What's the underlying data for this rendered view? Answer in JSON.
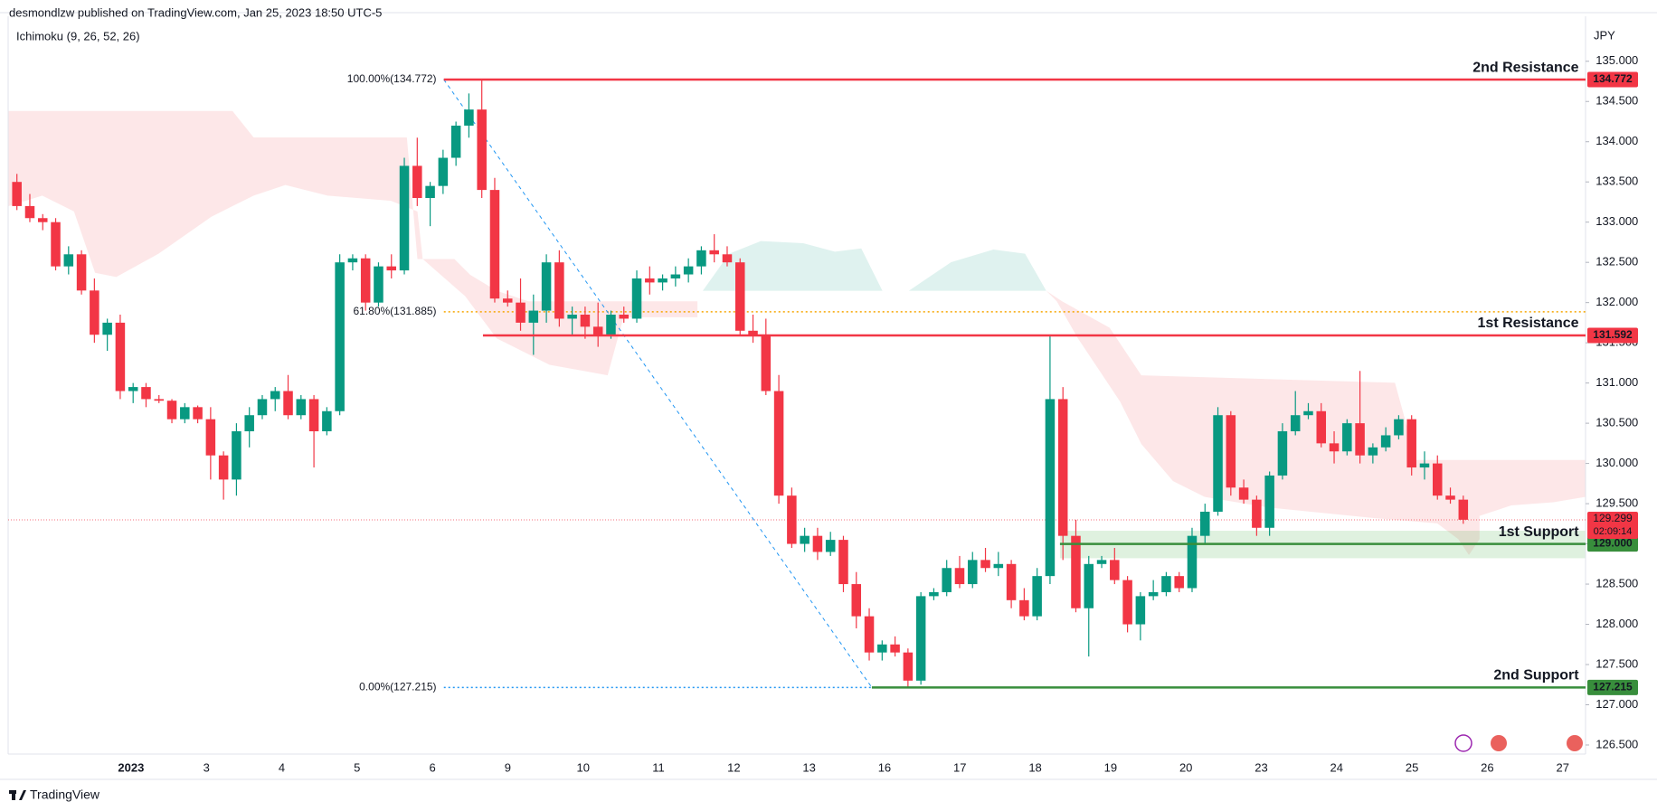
{
  "header": {
    "publisher": "desmondlzw published on TradingView.com, Jan 25, 2023 18:50 UTC-5",
    "indicator": "Ichimoku (9, 26, 52, 26)"
  },
  "footer": {
    "brand": "TradingView"
  },
  "chart_data": {
    "type": "candlestick",
    "currency": "JPY",
    "x_labels": [
      "2023",
      "3",
      "4",
      "5",
      "6",
      "9",
      "10",
      "11",
      "12",
      "13",
      "16",
      "17",
      "18",
      "19",
      "20",
      "23",
      "24",
      "25",
      "26",
      "27"
    ],
    "up_color": "#089981",
    "down_color": "#f23645",
    "candles": [
      [
        133.5,
        133.6,
        133.15,
        133.2
      ],
      [
        133.2,
        133.35,
        133.0,
        133.05
      ],
      [
        133.05,
        133.1,
        132.9,
        133.0
      ],
      [
        133.0,
        133.05,
        132.4,
        132.45
      ],
      [
        132.45,
        132.7,
        132.35,
        132.6
      ],
      [
        132.6,
        132.65,
        132.1,
        132.15
      ],
      [
        132.15,
        132.3,
        131.5,
        131.6
      ],
      [
        131.6,
        131.8,
        131.4,
        131.75
      ],
      [
        131.75,
        131.85,
        130.8,
        130.9
      ],
      [
        130.9,
        131.0,
        130.75,
        130.95
      ],
      [
        130.95,
        131.0,
        130.7,
        130.8
      ],
      [
        130.8,
        130.85,
        130.75,
        130.78
      ],
      [
        130.78,
        130.8,
        130.5,
        130.55
      ],
      [
        130.55,
        130.75,
        130.5,
        130.7
      ],
      [
        130.7,
        130.72,
        130.5,
        130.55
      ],
      [
        130.55,
        130.7,
        129.8,
        130.1
      ],
      [
        130.1,
        130.15,
        129.55,
        129.8
      ],
      [
        129.8,
        130.5,
        129.6,
        130.4
      ],
      [
        130.4,
        130.7,
        130.2,
        130.6
      ],
      [
        130.6,
        130.85,
        130.55,
        130.8
      ],
      [
        130.8,
        130.95,
        130.65,
        130.9
      ],
      [
        130.9,
        131.1,
        130.55,
        130.6
      ],
      [
        130.6,
        130.85,
        130.55,
        130.8
      ],
      [
        130.8,
        130.85,
        129.95,
        130.4
      ],
      [
        130.4,
        130.7,
        130.35,
        130.65
      ],
      [
        130.65,
        132.6,
        130.6,
        132.5
      ],
      [
        132.5,
        132.6,
        132.4,
        132.55
      ],
      [
        132.55,
        132.6,
        131.9,
        132.0
      ],
      [
        132.0,
        132.5,
        131.95,
        132.45
      ],
      [
        132.45,
        132.6,
        132.3,
        132.4
      ],
      [
        132.4,
        133.8,
        132.35,
        133.7
      ],
      [
        133.7,
        134.05,
        133.2,
        133.3
      ],
      [
        133.3,
        133.5,
        132.95,
        133.45
      ],
      [
        133.45,
        133.9,
        133.35,
        133.8
      ],
      [
        133.8,
        134.25,
        133.7,
        134.2
      ],
      [
        134.2,
        134.6,
        134.05,
        134.4
      ],
      [
        134.4,
        134.77,
        133.3,
        133.4
      ],
      [
        133.4,
        133.55,
        132.0,
        132.05
      ],
      [
        132.05,
        132.15,
        131.95,
        132.0
      ],
      [
        132.0,
        132.3,
        131.65,
        131.75
      ],
      [
        131.75,
        132.1,
        131.35,
        131.9
      ],
      [
        131.9,
        132.6,
        131.75,
        132.5
      ],
      [
        132.5,
        132.65,
        131.7,
        131.8
      ],
      [
        131.8,
        131.95,
        131.6,
        131.85
      ],
      [
        131.85,
        131.95,
        131.55,
        131.7
      ],
      [
        131.7,
        132.0,
        131.45,
        131.6
      ],
      [
        131.6,
        131.9,
        131.55,
        131.85
      ],
      [
        131.85,
        131.95,
        131.75,
        131.8
      ],
      [
        131.8,
        132.4,
        131.75,
        132.3
      ],
      [
        132.3,
        132.45,
        132.1,
        132.25
      ],
      [
        132.25,
        132.35,
        132.15,
        132.3
      ],
      [
        132.3,
        132.45,
        132.2,
        132.35
      ],
      [
        132.35,
        132.55,
        132.25,
        132.45
      ],
      [
        132.45,
        132.7,
        132.35,
        132.65
      ],
      [
        132.65,
        132.85,
        132.5,
        132.6
      ],
      [
        132.6,
        132.7,
        132.45,
        132.5
      ],
      [
        132.5,
        132.55,
        131.6,
        131.65
      ],
      [
        131.65,
        131.85,
        131.5,
        131.6
      ],
      [
        131.6,
        131.8,
        130.85,
        130.9
      ],
      [
        130.9,
        131.1,
        129.5,
        129.6
      ],
      [
        129.6,
        129.7,
        128.95,
        129.0
      ],
      [
        129.0,
        129.2,
        128.9,
        129.1
      ],
      [
        129.1,
        129.2,
        128.8,
        128.9
      ],
      [
        128.9,
        129.15,
        128.85,
        129.05
      ],
      [
        129.05,
        129.1,
        128.4,
        128.5
      ],
      [
        128.5,
        128.65,
        127.95,
        128.1
      ],
      [
        128.1,
        128.2,
        127.55,
        127.65
      ],
      [
        127.65,
        127.8,
        127.55,
        127.75
      ],
      [
        127.75,
        127.85,
        127.6,
        127.65
      ],
      [
        127.65,
        127.7,
        127.215,
        127.3
      ],
      [
        127.3,
        128.4,
        127.25,
        128.35
      ],
      [
        128.35,
        128.45,
        128.3,
        128.4
      ],
      [
        128.4,
        128.8,
        128.35,
        128.7
      ],
      [
        128.7,
        128.85,
        128.45,
        128.5
      ],
      [
        128.5,
        128.9,
        128.45,
        128.8
      ],
      [
        128.8,
        128.95,
        128.65,
        128.7
      ],
      [
        128.7,
        128.9,
        128.6,
        128.75
      ],
      [
        128.75,
        128.8,
        128.2,
        128.3
      ],
      [
        128.3,
        128.45,
        128.05,
        128.1
      ],
      [
        128.1,
        128.7,
        128.05,
        128.6
      ],
      [
        128.6,
        131.6,
        128.5,
        130.8
      ],
      [
        130.8,
        130.95,
        128.8,
        129.1
      ],
      [
        129.1,
        129.3,
        128.15,
        128.2
      ],
      [
        128.2,
        128.85,
        127.6,
        128.75
      ],
      [
        128.75,
        128.85,
        128.7,
        128.8
      ],
      [
        128.8,
        128.95,
        128.5,
        128.55
      ],
      [
        128.55,
        128.6,
        127.9,
        128.0
      ],
      [
        128.0,
        128.4,
        127.8,
        128.35
      ],
      [
        128.35,
        128.55,
        128.3,
        128.4
      ],
      [
        128.4,
        128.65,
        128.35,
        128.6
      ],
      [
        128.6,
        128.65,
        128.4,
        128.45
      ],
      [
        128.45,
        129.2,
        128.4,
        129.1
      ],
      [
        129.1,
        129.5,
        129.0,
        129.4
      ],
      [
        129.4,
        130.7,
        129.35,
        130.6
      ],
      [
        130.6,
        130.65,
        129.6,
        129.7
      ],
      [
        129.7,
        129.8,
        129.5,
        129.55
      ],
      [
        129.55,
        129.6,
        129.1,
        129.2
      ],
      [
        129.2,
        129.9,
        129.1,
        129.85
      ],
      [
        129.85,
        130.5,
        129.8,
        130.4
      ],
      [
        130.4,
        130.9,
        130.35,
        130.6
      ],
      [
        130.6,
        130.75,
        130.55,
        130.65
      ],
      [
        130.65,
        130.75,
        130.2,
        130.25
      ],
      [
        130.25,
        130.4,
        130.0,
        130.15
      ],
      [
        130.15,
        130.55,
        130.1,
        130.5
      ],
      [
        130.5,
        131.15,
        130.0,
        130.1
      ],
      [
        130.1,
        130.25,
        130.0,
        130.2
      ],
      [
        130.2,
        130.45,
        130.15,
        130.35
      ],
      [
        130.35,
        130.6,
        130.3,
        130.55
      ],
      [
        130.55,
        130.6,
        129.85,
        129.95
      ],
      [
        129.95,
        130.15,
        129.8,
        130.0
      ],
      [
        130.0,
        130.1,
        129.55,
        129.6
      ],
      [
        129.6,
        129.7,
        129.5,
        129.55
      ],
      [
        129.55,
        129.6,
        129.25,
        129.3
      ]
    ],
    "ylim": [
      126.393,
      135.565
    ],
    "yticks": [
      {
        "value": 126.5,
        "label": "126.500"
      },
      {
        "value": 127,
        "label": "127.000"
      },
      {
        "value": 127.5,
        "label": "127.500"
      },
      {
        "value": 128,
        "label": "128.000"
      },
      {
        "value": 128.5,
        "label": "128.500"
      },
      {
        "value": 129,
        "label": "129.000"
      },
      {
        "value": 129.5,
        "label": "129.500"
      },
      {
        "value": 130,
        "label": "130.000"
      },
      {
        "value": 130.5,
        "label": "130.500"
      },
      {
        "value": 131,
        "label": "131.000"
      },
      {
        "value": 131.5,
        "label": "131.500"
      },
      {
        "value": 132,
        "label": "132.000"
      },
      {
        "value": 132.5,
        "label": "132.500"
      },
      {
        "value": 133,
        "label": "133.000"
      },
      {
        "value": 133.5,
        "label": "133.500"
      },
      {
        "value": 134,
        "label": "134.000"
      },
      {
        "value": 134.5,
        "label": "134.500"
      },
      {
        "value": 135,
        "label": "135.000"
      }
    ],
    "levels": [
      {
        "name": "2nd Resistance",
        "value": 134.772,
        "label": "134.772",
        "color": "#f23645"
      },
      {
        "name": "1st Resistance",
        "value": 131.592,
        "label": "131.592",
        "color": "#f23645"
      },
      {
        "name": "1st Support",
        "value": 129,
        "label": "129.000",
        "color": "#388e3c"
      },
      {
        "name": "2nd Support",
        "value": 127.215,
        "label": "127.215",
        "color": "#388e3c"
      }
    ],
    "fib": [
      {
        "label": "100.00%(134.772)",
        "value": 134.772,
        "color": "#2196f3"
      },
      {
        "label": "61.80%(131.885)",
        "value": 131.885,
        "color": "#f7a600"
      },
      {
        "label": "0.00%(127.215)",
        "value": 127.215,
        "color": "#2196f3"
      }
    ],
    "last_price": {
      "value": 129.299,
      "label": "129.299",
      "countdown": "02:09:14",
      "color": "#f23645"
    }
  }
}
